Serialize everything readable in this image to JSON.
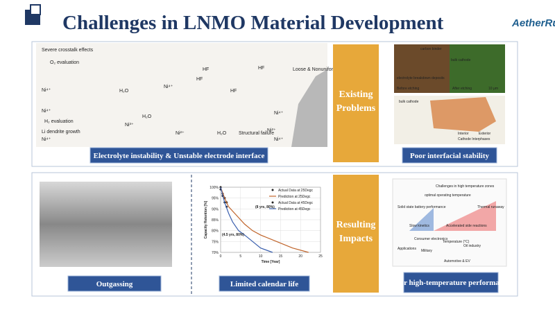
{
  "header": {
    "title": "Challenges in LNMO Material Development",
    "logo": "AetherRun"
  },
  "sections": [
    {
      "heading": "Existing Problems",
      "captions": [
        "Electrolyte instability & Unstable electrode interface",
        "Poor interfacial stability"
      ]
    },
    {
      "heading": "Resulting Impacts",
      "captions": [
        "Outgassing",
        "Limited calendar life",
        "Poor high-temperature performance"
      ]
    }
  ],
  "figure_labels": {
    "crosstalk": [
      "Severe crosstalk effects",
      "O₂ evaluation",
      "Ni⁴⁺",
      "H₂O",
      "Ni⁴⁺",
      "HF",
      "HF",
      "HF",
      "Loose & Nonuniform",
      "Ni⁴⁺",
      "H₂O",
      "Ni³⁺",
      "Ni²⁺",
      "H₂O",
      "Structural failure",
      "Ni²⁺",
      "Ni⁴⁺",
      "H₂ evaluation",
      "Li dendrite growth",
      "Ni⁴⁺",
      "HF",
      "Ni⁴⁺"
    ],
    "interface": [
      "carbon binder",
      "electrolyte breakdown deposits",
      "Before etching",
      "bulk cathode",
      "After etching",
      "10 μm",
      "bulk cathode",
      "Interior",
      "Exterior",
      "Cathode Interphases"
    ],
    "temperature": [
      "Challenges in high temperature zones",
      "Solid state battery performance",
      "optimal operating temperature",
      "Slow kinetics",
      "Accelerated side reactions",
      "Thermal runaway",
      "Applications",
      "Temperature (°C)",
      "Consumer electronics",
      "Military",
      "Oil industry",
      "Automotive & EV"
    ]
  },
  "chart": {
    "type": "line",
    "x_label": "Time [Year]",
    "y_label": "Capacity Retention [%]",
    "xlim": [
      0,
      25
    ],
    "ylim": [
      70,
      100
    ],
    "xticks": [
      0,
      5,
      10,
      15,
      20,
      25
    ],
    "yticks": [
      {
        "value": 70,
        "label": "70%"
      },
      {
        "value": 75,
        "label": "75%"
      },
      {
        "value": 80,
        "label": "80%"
      },
      {
        "value": 85,
        "label": "85%"
      },
      {
        "value": 90,
        "label": "90%"
      },
      {
        "value": 95,
        "label": "95%"
      },
      {
        "value": 100,
        "label": "100%"
      }
    ],
    "series": [
      {
        "name": "Actual Data at 25Degc",
        "style": "points",
        "color": "#222222",
        "x": [
          0,
          0.5,
          1,
          1.5
        ],
        "values": [
          100,
          97,
          95,
          93
        ]
      },
      {
        "name": "Prediction at 25Degc",
        "style": "line",
        "color": "#c0642a",
        "x": [
          0,
          1,
          2,
          4,
          6,
          8,
          10,
          14,
          18,
          22
        ],
        "values": [
          100,
          95,
          91,
          87,
          83,
          80,
          78,
          75,
          72,
          70
        ]
      },
      {
        "name": "Actual Data at 45Degc",
        "style": "points",
        "color": "#222222",
        "x": [
          0,
          0.5,
          1,
          1.5
        ],
        "values": [
          99,
          96,
          93,
          91
        ]
      },
      {
        "name": "Prediction at 45Degc",
        "style": "line",
        "color": "#3a5fae",
        "x": [
          0,
          1,
          2,
          3,
          4.5,
          6,
          8,
          10,
          13
        ],
        "values": [
          100,
          93,
          88,
          84,
          80,
          78,
          75,
          72,
          70
        ]
      }
    ],
    "annotations": [
      "(8 yrs, 80%)",
      "(4.5 yrs, 80%)"
    ]
  }
}
